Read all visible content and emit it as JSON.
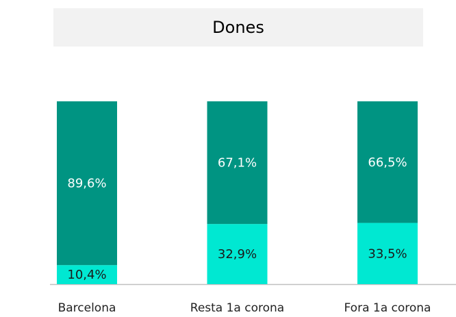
{
  "chart_data": {
    "type": "stacked_bar",
    "title": "Dones",
    "categories": [
      "Barcelona",
      "Resta 1a corona",
      "Fora 1a corona"
    ],
    "series": [
      {
        "color": "#00e8d2",
        "values": [
          10.4,
          32.9,
          33.5
        ],
        "value_labels": [
          "10,4%",
          "32,9%",
          "33,5%"
        ]
      },
      {
        "color": "#009482",
        "values": [
          89.6,
          67.1,
          66.5
        ],
        "value_labels": [
          "89,6%",
          "67,1%",
          "66,5%"
        ]
      }
    ],
    "ylim": [
      0,
      100
    ]
  }
}
